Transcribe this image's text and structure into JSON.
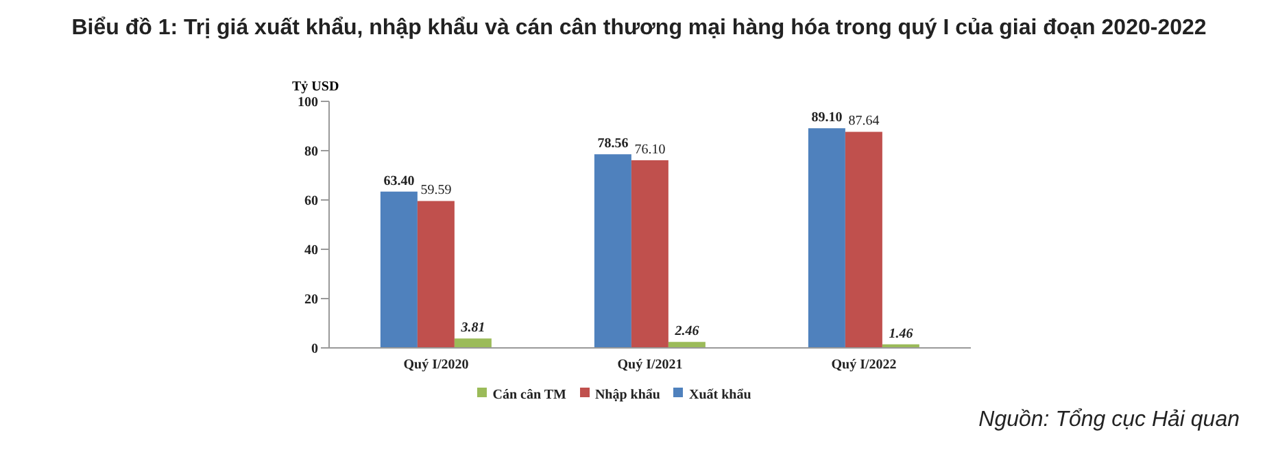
{
  "chart_data": {
    "type": "bar",
    "title": "Biểu đồ 1: Trị giá xuất khẩu, nhập khẩu và cán cân thương mại hàng hóa trong quý I của giai đoạn 2020-2022",
    "ylabel": "Tỷ USD",
    "categories": [
      "Quý I/2020",
      "Quý I/2021",
      "Quý I/2022"
    ],
    "series": [
      {
        "name": "Xuất khẩu",
        "color": "#4f81bd",
        "values": [
          63.4,
          78.56,
          89.1
        ],
        "value_labels": [
          "63.40",
          "78.56",
          "89.10"
        ]
      },
      {
        "name": "Nhập khẩu",
        "color": "#c0504d",
        "values": [
          59.59,
          76.1,
          87.64
        ],
        "value_labels": [
          "59.59",
          "76.10",
          "87.64"
        ]
      },
      {
        "name": "Cán cân TM",
        "color": "#9bbb59",
        "values": [
          3.81,
          2.46,
          1.46
        ],
        "value_labels": [
          "3.81",
          "2.46",
          "1.46"
        ]
      }
    ],
    "ylim": [
      0,
      100
    ],
    "yticks": [
      0,
      20,
      40,
      60,
      80,
      100
    ],
    "grid": false,
    "legend": "bottom",
    "annotations": [
      "Nguồn: Tổng cục Hải quan"
    ]
  }
}
